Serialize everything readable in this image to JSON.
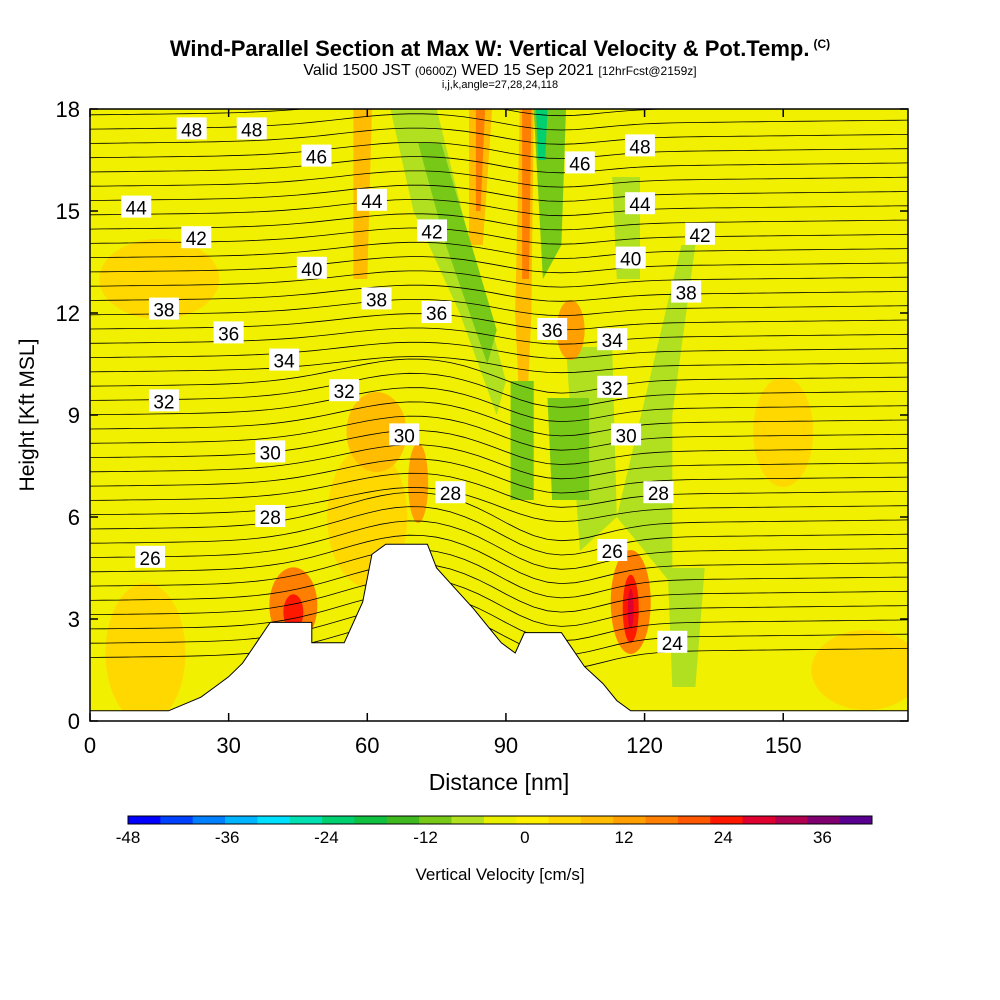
{
  "title": {
    "main": "Wind-Parallel Section at Max W: Vertical Velocity & Pot.Temp.",
    "copyright": "(C)",
    "valid_a": "Valid 1500 JST",
    "valid_utc": "(0600Z)",
    "valid_b": "WED 15 Sep 2021",
    "forecast": "[12hrFcst@2159z]",
    "indices": "i,j,k,angle=27,28,24,118"
  },
  "chart_data": {
    "type": "heatmap",
    "xlabel": "Distance [nm]",
    "ylabel": "Height [Kft MSL]",
    "xlim": [
      0,
      177
    ],
    "ylim": [
      0,
      18
    ],
    "x_ticks": [
      0,
      30,
      60,
      90,
      120,
      150
    ],
    "y_ticks": [
      0,
      3,
      6,
      9,
      12,
      15,
      18
    ],
    "colorbar": {
      "label": "Vertical Velocity [cm/s]",
      "min": -48,
      "max": 42,
      "step": 4,
      "tick_labels": [
        -48,
        -36,
        -24,
        -12,
        0,
        12,
        24,
        36
      ],
      "colors": [
        "#0000ff",
        "#0040ff",
        "#0080ff",
        "#00b4ff",
        "#00e0ff",
        "#00e0b0",
        "#00d070",
        "#10c040",
        "#40b820",
        "#78c818",
        "#b0e020",
        "#e8f000",
        "#fff000",
        "#ffd800",
        "#ffbc00",
        "#ffa000",
        "#ff8000",
        "#ff5800",
        "#ff1800",
        "#e00030",
        "#b00050",
        "#800070",
        "#5a0090"
      ]
    },
    "terrain": [
      [
        0,
        0.3
      ],
      [
        17,
        0.3
      ],
      [
        24,
        0.7
      ],
      [
        27,
        1.0
      ],
      [
        30,
        1.3
      ],
      [
        33,
        1.7
      ],
      [
        36,
        2.3
      ],
      [
        39,
        2.9
      ],
      [
        48,
        2.9
      ],
      [
        48,
        2.3
      ],
      [
        55,
        2.3
      ],
      [
        59,
        3.5
      ],
      [
        61,
        4.9
      ],
      [
        64,
        5.2
      ],
      [
        73,
        5.2
      ],
      [
        75,
        4.5
      ],
      [
        79,
        3.9
      ],
      [
        83,
        3.3
      ],
      [
        86,
        2.8
      ],
      [
        89,
        2.3
      ],
      [
        92,
        2.0
      ],
      [
        94,
        2.6
      ],
      [
        102,
        2.6
      ],
      [
        104,
        2.2
      ],
      [
        107,
        1.6
      ],
      [
        111,
        1.1
      ],
      [
        114,
        0.6
      ],
      [
        117,
        0.3
      ],
      [
        177,
        0.3
      ]
    ],
    "theta_labels": [
      {
        "text": "48",
        "x": 22,
        "y": 17.4
      },
      {
        "text": "48",
        "x": 35,
        "y": 17.4
      },
      {
        "text": "46",
        "x": 49,
        "y": 16.6
      },
      {
        "text": "44",
        "x": 61,
        "y": 15.3
      },
      {
        "text": "42",
        "x": 74,
        "y": 14.4
      },
      {
        "text": "46",
        "x": 106,
        "y": 16.4
      },
      {
        "text": "48",
        "x": 119,
        "y": 16.9
      },
      {
        "text": "44",
        "x": 119,
        "y": 15.2
      },
      {
        "text": "42",
        "x": 132,
        "y": 14.3
      },
      {
        "text": "44",
        "x": 10,
        "y": 15.1
      },
      {
        "text": "42",
        "x": 23,
        "y": 14.2
      },
      {
        "text": "40",
        "x": 48,
        "y": 13.3
      },
      {
        "text": "40",
        "x": 117,
        "y": 13.6
      },
      {
        "text": "38",
        "x": 129,
        "y": 12.6
      },
      {
        "text": "38",
        "x": 16,
        "y": 12.1
      },
      {
        "text": "36",
        "x": 30,
        "y": 11.4
      },
      {
        "text": "38",
        "x": 62,
        "y": 12.4
      },
      {
        "text": "36",
        "x": 75,
        "y": 12.0
      },
      {
        "text": "36",
        "x": 100,
        "y": 11.5
      },
      {
        "text": "34",
        "x": 113,
        "y": 11.2
      },
      {
        "text": "34",
        "x": 42,
        "y": 10.6
      },
      {
        "text": "32",
        "x": 16,
        "y": 9.4
      },
      {
        "text": "32",
        "x": 55,
        "y": 9.7
      },
      {
        "text": "32",
        "x": 113,
        "y": 9.8
      },
      {
        "text": "30",
        "x": 39,
        "y": 7.9
      },
      {
        "text": "30",
        "x": 68,
        "y": 8.4
      },
      {
        "text": "30",
        "x": 116,
        "y": 8.4
      },
      {
        "text": "28",
        "x": 39,
        "y": 6.0
      },
      {
        "text": "28",
        "x": 78,
        "y": 6.7
      },
      {
        "text": "28",
        "x": 123,
        "y": 6.7
      },
      {
        "text": "26",
        "x": 13,
        "y": 4.8
      },
      {
        "text": "26",
        "x": 113,
        "y": 5.0
      },
      {
        "text": "24",
        "x": 126,
        "y": 2.3
      }
    ]
  }
}
